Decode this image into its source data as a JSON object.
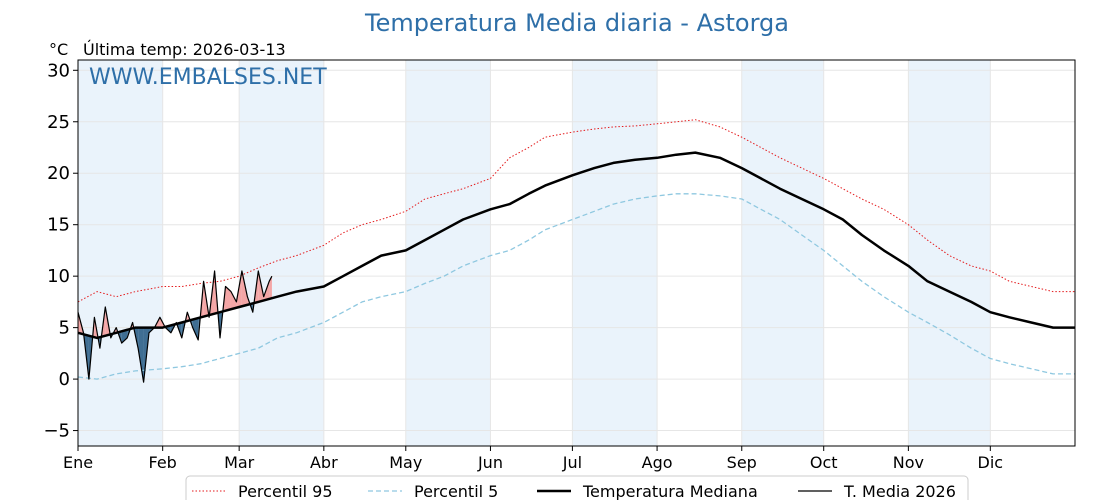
{
  "chart_data": {
    "type": "line",
    "title": "Temperatura Media diaria - Astorga",
    "unit_label": "°C",
    "last_temp_label": "Última temp: 2026-03-13",
    "watermark": "WWW.EMBALSES.NET",
    "ylim": [
      -6.5,
      31
    ],
    "yticks": [
      -5,
      0,
      5,
      10,
      15,
      20,
      25,
      30
    ],
    "xlim": [
      1,
      366
    ],
    "months": [
      "Ene",
      "Feb",
      "Mar",
      "Abr",
      "May",
      "Jun",
      "Jul",
      "Ago",
      "Sep",
      "Oct",
      "Nov",
      "Dic"
    ],
    "month_start_days": [
      1,
      32,
      60,
      91,
      121,
      152,
      182,
      213,
      244,
      274,
      305,
      335
    ],
    "shaded_months": [
      "Ene",
      "Mar",
      "May",
      "Jul",
      "Sep",
      "Nov"
    ],
    "grid": true,
    "legend_position": "bottom",
    "colors": {
      "p95": "#e41a1c",
      "p5": "#8fc8e0",
      "median": "#000000",
      "current": "#000000",
      "above_fill": "#f4a6a6",
      "below_fill": "#3f6e93",
      "band": "#eaf3fb"
    },
    "series": [
      {
        "name": "Percentil 95",
        "style": "dotted-red",
        "x": [
          1,
          8,
          15,
          22,
          32,
          39,
          46,
          53,
          60,
          67,
          74,
          81,
          91,
          98,
          105,
          112,
          121,
          128,
          135,
          142,
          152,
          159,
          166,
          172,
          182,
          190,
          197,
          205,
          213,
          220,
          227,
          236,
          244,
          251,
          258,
          266,
          274,
          281,
          288,
          296,
          305,
          312,
          320,
          328,
          335,
          342,
          350,
          358,
          366
        ],
        "values": [
          7.5,
          8.5,
          8.0,
          8.5,
          9.0,
          9.0,
          9.3,
          9.5,
          10.0,
          10.8,
          11.5,
          12.0,
          13.0,
          14.2,
          15.0,
          15.5,
          16.3,
          17.5,
          18.0,
          18.5,
          19.5,
          21.5,
          22.5,
          23.5,
          24.0,
          24.3,
          24.5,
          24.6,
          24.8,
          25.0,
          25.2,
          24.5,
          23.5,
          22.5,
          21.5,
          20.5,
          19.5,
          18.5,
          17.5,
          16.5,
          15.0,
          13.5,
          12.0,
          11.0,
          10.5,
          9.5,
          9.0,
          8.5,
          8.5
        ]
      },
      {
        "name": "Percentil 5",
        "style": "dashed-lightblue",
        "x": [
          1,
          8,
          15,
          22,
          32,
          39,
          46,
          53,
          60,
          67,
          74,
          81,
          91,
          98,
          105,
          112,
          121,
          128,
          135,
          142,
          152,
          159,
          166,
          172,
          182,
          190,
          197,
          205,
          213,
          220,
          227,
          236,
          244,
          251,
          258,
          266,
          274,
          281,
          288,
          296,
          305,
          312,
          320,
          328,
          335,
          342,
          350,
          358,
          366
        ],
        "values": [
          0.2,
          0.0,
          0.5,
          0.8,
          1.0,
          1.2,
          1.5,
          2.0,
          2.5,
          3.0,
          4.0,
          4.5,
          5.5,
          6.5,
          7.5,
          8.0,
          8.5,
          9.3,
          10.0,
          11.0,
          12.0,
          12.5,
          13.5,
          14.5,
          15.5,
          16.3,
          17.0,
          17.5,
          17.8,
          18.0,
          18.0,
          17.8,
          17.5,
          16.5,
          15.5,
          14.0,
          12.5,
          11.0,
          9.5,
          8.0,
          6.5,
          5.5,
          4.3,
          3.0,
          2.0,
          1.5,
          1.0,
          0.5,
          0.5
        ]
      },
      {
        "name": "Temperatura Mediana",
        "style": "solid-thick-black",
        "x": [
          1,
          8,
          15,
          22,
          32,
          39,
          46,
          53,
          60,
          67,
          74,
          81,
          91,
          98,
          105,
          112,
          121,
          128,
          135,
          142,
          152,
          159,
          166,
          172,
          182,
          190,
          197,
          205,
          213,
          220,
          227,
          236,
          244,
          251,
          258,
          266,
          274,
          281,
          288,
          296,
          305,
          312,
          320,
          328,
          335,
          342,
          350,
          358,
          366
        ],
        "values": [
          4.5,
          4.0,
          4.5,
          5.0,
          5.0,
          5.5,
          6.0,
          6.5,
          7.0,
          7.5,
          8.0,
          8.5,
          9.0,
          10.0,
          11.0,
          12.0,
          12.5,
          13.5,
          14.5,
          15.5,
          16.5,
          17.0,
          18.0,
          18.8,
          19.8,
          20.5,
          21.0,
          21.3,
          21.5,
          21.8,
          22.0,
          21.5,
          20.5,
          19.5,
          18.5,
          17.5,
          16.5,
          15.5,
          14.0,
          12.5,
          11.0,
          9.5,
          8.5,
          7.5,
          6.5,
          6.0,
          5.5,
          5.0,
          5.0
        ]
      },
      {
        "name": "T. Media 2026",
        "style": "solid-thin-black",
        "x": [
          1,
          3,
          5,
          7,
          9,
          11,
          13,
          15,
          17,
          19,
          21,
          23,
          25,
          27,
          29,
          31,
          33,
          35,
          37,
          39,
          41,
          43,
          45,
          47,
          49,
          51,
          53,
          55,
          57,
          59,
          61,
          63,
          65,
          67,
          69,
          71,
          72
        ],
        "values": [
          6.5,
          4.5,
          0.0,
          6.0,
          3.0,
          7.0,
          4.0,
          5.0,
          3.5,
          4.0,
          5.5,
          3.0,
          -0.3,
          4.5,
          5.0,
          6.0,
          5.0,
          4.5,
          5.5,
          4.0,
          6.5,
          5.0,
          3.8,
          9.5,
          6.0,
          10.5,
          4.0,
          9.0,
          8.5,
          7.5,
          10.5,
          8.0,
          6.5,
          10.5,
          8.0,
          9.5,
          10.0
        ]
      }
    ]
  }
}
